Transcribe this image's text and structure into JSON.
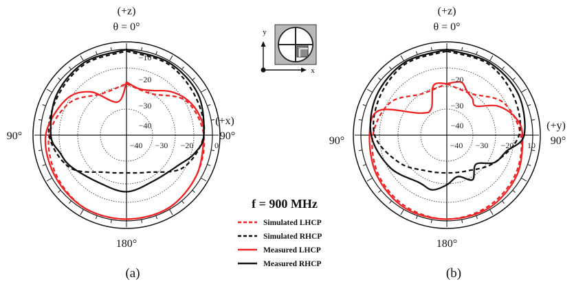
{
  "figure": {
    "frequency_label": "f = 900 MHz",
    "legend": [
      "Simulated LHCP",
      "Simulated RHCP",
      "Measured LHCP",
      "Measured RHCP"
    ],
    "colors": {
      "lhcp": "#ee2222",
      "rhcp": "#111111"
    }
  },
  "chart_data": [
    {
      "type": "polar",
      "panel_label": "(a)",
      "top_axis_label": "(+z)",
      "top_angle_label": "θ = 0°",
      "side_axis_label": "(+x)",
      "left_angle_label": "90°",
      "right_angle_label": "90°",
      "bottom_angle_label": "180°",
      "r_ticks": [
        "−10",
        "−20",
        "−30",
        "−40"
      ],
      "h_ticks": [
        "−40",
        "−30",
        "−20",
        "0"
      ],
      "rlim_db": [
        -50,
        0
      ],
      "theta_unit": "deg",
      "series": [
        {
          "name": "Simulated LHCP",
          "style": "dashed",
          "color": "#ee2222",
          "theta": [
            0,
            30,
            60,
            90,
            120,
            150,
            180,
            210,
            240,
            270,
            300,
            330,
            360
          ],
          "r_db": [
            -20,
            -22,
            -10,
            -5,
            -3,
            -1,
            -1,
            -1,
            -3,
            -5,
            -12,
            -22,
            -20
          ]
        },
        {
          "name": "Simulated RHCP",
          "style": "dashed",
          "color": "#111111",
          "theta": [
            0,
            30,
            60,
            90,
            120,
            150,
            180,
            210,
            240,
            270,
            300,
            330,
            360
          ],
          "r_db": [
            -1,
            -2,
            -4,
            -5,
            -12,
            -25,
            -28,
            -25,
            -12,
            -5,
            -4,
            -2,
            -1
          ]
        },
        {
          "name": "Measured LHCP",
          "style": "solid",
          "color": "#ee2222",
          "theta": [
            0,
            15,
            30,
            45,
            60,
            75,
            90,
            120,
            150,
            180,
            210,
            240,
            270,
            300,
            320,
            345,
            360
          ],
          "r_db": [
            -19,
            -22,
            -20,
            -14,
            -9,
            -6,
            -5,
            -3,
            -1,
            -1,
            -1,
            -2,
            -3,
            -9,
            -17,
            -30,
            -19
          ]
        },
        {
          "name": "Measured RHCP",
          "style": "solid",
          "color": "#111111",
          "theta": [
            0,
            30,
            60,
            90,
            105,
            120,
            150,
            180,
            210,
            240,
            255,
            270,
            300,
            330,
            360
          ],
          "r_db": [
            0,
            -1,
            -2,
            -5,
            -9,
            -15,
            -19,
            -17,
            -18,
            -13,
            -10,
            -6,
            -3,
            -1,
            0
          ]
        }
      ]
    },
    {
      "type": "polar",
      "panel_label": "(b)",
      "top_axis_label": "(+z)",
      "top_angle_label": "θ = 0°",
      "side_axis_label": "(+y)",
      "left_angle_label": "90°",
      "right_angle_label": "90°",
      "bottom_angle_label": "180°",
      "r_ticks": [
        "−20",
        "−30",
        "−40"
      ],
      "h_ticks": [
        "−40",
        "−30",
        "−20",
        "10"
      ],
      "rlim_db": [
        -50,
        0
      ],
      "theta_unit": "deg",
      "series": [
        {
          "name": "Simulated LHCP",
          "style": "dashed",
          "color": "#ee2222",
          "theta": [
            0,
            30,
            60,
            90,
            120,
            150,
            180,
            210,
            240,
            270,
            300,
            330,
            360
          ],
          "r_db": [
            -20,
            -22,
            -12,
            -7,
            -4,
            -2,
            -1,
            -2,
            -4,
            -7,
            -12,
            -22,
            -20
          ]
        },
        {
          "name": "Simulated RHCP",
          "style": "dashed",
          "color": "#111111",
          "theta": [
            0,
            30,
            60,
            90,
            120,
            150,
            180,
            210,
            240,
            270,
            300,
            330,
            360
          ],
          "r_db": [
            -1,
            -2,
            -5,
            -8,
            -18,
            -26,
            -28,
            -26,
            -18,
            -8,
            -5,
            -2,
            -1
          ]
        },
        {
          "name": "Measured LHCP",
          "style": "solid",
          "color": "#ee2222",
          "theta": [
            0,
            15,
            25,
            35,
            45,
            60,
            75,
            90,
            120,
            150,
            180,
            210,
            240,
            270,
            290,
            310,
            330,
            345,
            360
          ],
          "r_db": [
            -20,
            -18,
            -22,
            -24,
            -26,
            -16,
            -9,
            -6,
            -3,
            -1,
            -1,
            -1,
            -3,
            -5,
            -8,
            -30,
            -32,
            -20,
            -20
          ]
        },
        {
          "name": "Measured RHCP",
          "style": "solid",
          "color": "#111111",
          "theta": [
            0,
            30,
            60,
            90,
            105,
            120,
            135,
            150,
            165,
            180,
            195,
            210,
            240,
            270,
            300,
            330,
            360
          ],
          "r_db": [
            0,
            -1,
            -2,
            -5,
            -14,
            -18,
            -26,
            -20,
            -25,
            -21,
            -17,
            -18,
            -12,
            -6,
            -3,
            -1,
            0
          ]
        }
      ]
    }
  ]
}
